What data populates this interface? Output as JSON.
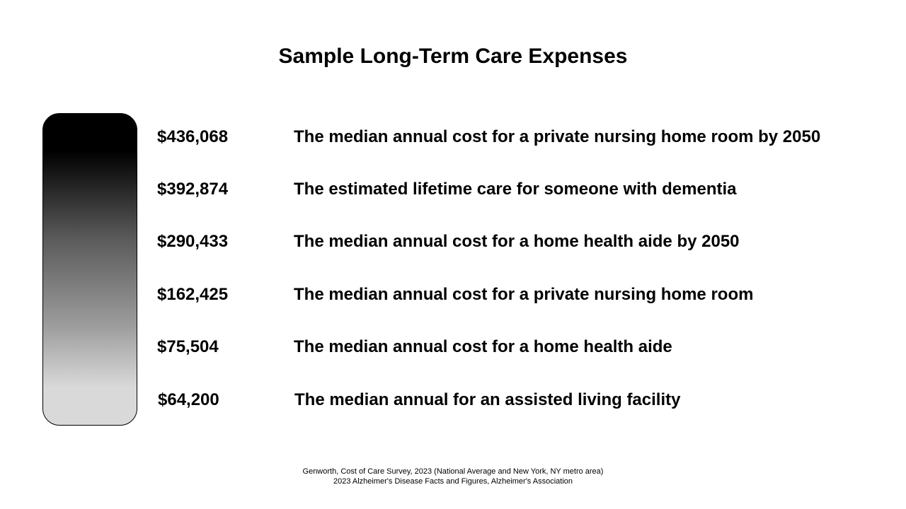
{
  "title": "Sample Long-Term Care Expenses",
  "expenses": [
    {
      "amount": "$436,068",
      "description": "The median annual cost for a private nursing home room by 2050"
    },
    {
      "amount": "$392,874",
      "description": "The estimated lifetime care for someone with dementia"
    },
    {
      "amount": "$290,433",
      "description": "The median annual cost for a home health aide by 2050"
    },
    {
      "amount": "$162,425",
      "description": "The median annual cost for a private nursing home room"
    },
    {
      "amount": "$75,504",
      "description": "The median annual cost for a home health aide"
    },
    {
      "amount": "$64,200",
      "description": "The median annual for an assisted living facility"
    }
  ],
  "sources": [
    "Genworth, Cost of Care Survey, 2023 (National Average and New York, NY metro area)",
    "2023 Alzheimer's Disease Facts and Figures, Alzheimer's Association"
  ],
  "colors": {
    "bar_top": "#000000",
    "bar_bottom": "#d9d9d9",
    "text": "#000000",
    "background": "#ffffff"
  }
}
